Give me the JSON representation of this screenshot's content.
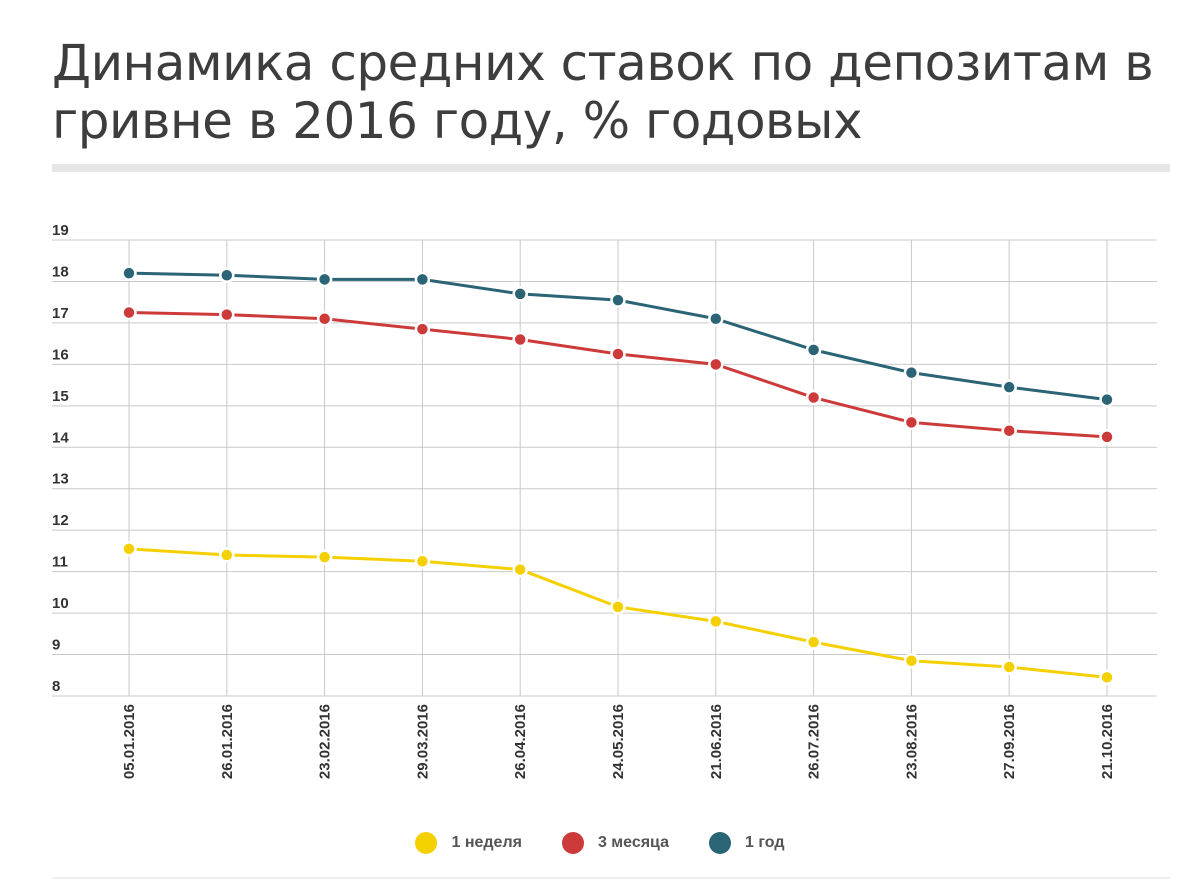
{
  "chart_data": {
    "type": "line",
    "title": "Динамика средних ставок по депозитам в гривне в 2016 году, % годовых",
    "xlabel": "",
    "ylabel": "",
    "ylim": [
      8,
      19
    ],
    "yticks": [
      "8",
      "9",
      "10",
      "11",
      "12",
      "13",
      "14",
      "15",
      "16",
      "17",
      "18",
      "19"
    ],
    "categories": [
      "05.01.2016",
      "26.01.2016",
      "23.02.2016",
      "29.03.2016",
      "26.04.2016",
      "24.05.2016",
      "21.06.2016",
      "26.07.2016",
      "23.08.2016",
      "27.09.2016",
      "21.10.2016"
    ],
    "series": [
      {
        "name": "1 неделя",
        "color": "#f5d000",
        "values": [
          11.55,
          11.4,
          11.35,
          11.25,
          11.05,
          10.15,
          9.8,
          9.3,
          8.85,
          8.7,
          8.45
        ]
      },
      {
        "name": "3 месяца",
        "color": "#cc3a3a",
        "values": [
          17.25,
          17.2,
          17.1,
          16.85,
          16.6,
          16.25,
          16.0,
          15.2,
          14.6,
          14.4,
          14.25
        ]
      },
      {
        "name": "1 год",
        "color": "#2a6475",
        "values": [
          18.2,
          18.15,
          18.05,
          18.05,
          17.7,
          17.55,
          17.1,
          16.35,
          15.8,
          15.45,
          15.15
        ]
      }
    ],
    "grid": true,
    "legend": "bottom-center"
  }
}
